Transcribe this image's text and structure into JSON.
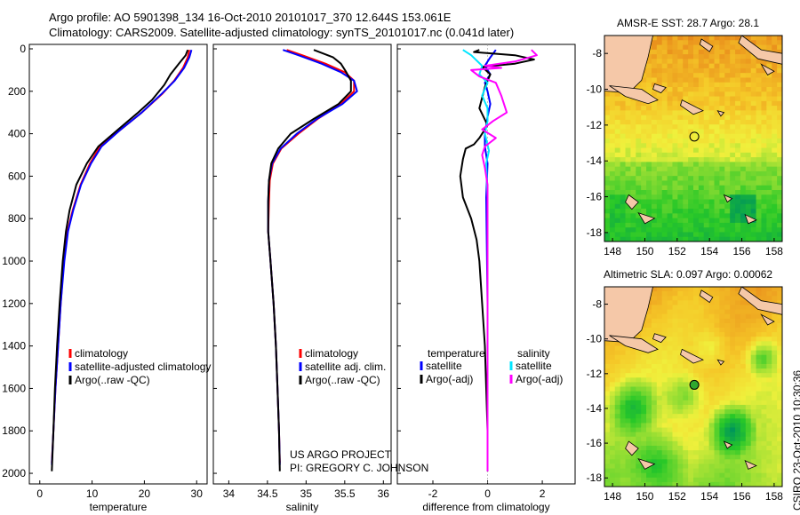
{
  "header": {
    "line1": "Argo profile: AO 5901398_134 16-Oct-2010 20101017_370 12.644S 153.061E",
    "line2": "Climatology: CARS2009. Satellite-adjusted climatology: synTS_20101017.nc (0.041d later)"
  },
  "footer": {
    "stamp": "CSIRO 23-Oct-2010 10:30:36"
  },
  "colors": {
    "red": "#ff0000",
    "blue": "#0000ff",
    "black": "#000000",
    "cyan": "#00e5ff",
    "magenta": "#ff00ff",
    "land": "#f5c8a8"
  },
  "y_ticks": [
    "0",
    "200",
    "400",
    "600",
    "800",
    "1000",
    "1200",
    "1400",
    "1600",
    "1800",
    "2000"
  ],
  "chart_data": [
    {
      "type": "line",
      "title": "",
      "xlabel": "temperature",
      "ylabel": "pressure",
      "xlim": [
        -2,
        32
      ],
      "ylim": [
        2050,
        0
      ],
      "xticks": [
        0,
        10,
        20,
        30
      ],
      "xtick_labels": [
        "0",
        "10",
        "20",
        "30"
      ],
      "legend": [
        "climatology",
        "satellite-adjusted climatology",
        "Argo(..raw -QC)"
      ],
      "series": [
        {
          "name": "climatology",
          "color": "red",
          "points": [
            [
              28.6,
              5
            ],
            [
              28.3,
              40
            ],
            [
              27.4,
              90
            ],
            [
              25.7,
              150
            ],
            [
              23.5,
              210
            ],
            [
              19.5,
              300
            ],
            [
              15.5,
              380
            ],
            [
              11.5,
              460
            ],
            [
              9.6,
              540
            ],
            [
              7.8,
              640
            ],
            [
              6.3,
              760
            ],
            [
              5.3,
              860
            ],
            [
              4.6,
              1000
            ],
            [
              4.0,
              1200
            ],
            [
              3.5,
              1400
            ],
            [
              3.0,
              1600
            ],
            [
              2.6,
              1800
            ],
            [
              2.3,
              1950
            ]
          ]
        },
        {
          "name": "satellite-adjusted climatology",
          "color": "blue",
          "points": [
            [
              29.0,
              5
            ],
            [
              28.6,
              40
            ],
            [
              27.6,
              90
            ],
            [
              25.8,
              150
            ],
            [
              23.4,
              210
            ],
            [
              19.5,
              300
            ],
            [
              15.5,
              380
            ],
            [
              11.8,
              460
            ],
            [
              9.8,
              540
            ],
            [
              7.9,
              640
            ],
            [
              6.4,
              760
            ],
            [
              5.4,
              860
            ],
            [
              4.7,
              1000
            ],
            [
              4.0,
              1200
            ],
            [
              3.5,
              1400
            ],
            [
              3.0,
              1600
            ],
            [
              2.6,
              1800
            ],
            [
              2.3,
              1960
            ]
          ]
        },
        {
          "name": "Argo(..raw -QC)",
          "color": "black",
          "points": [
            [
              28.3,
              5
            ],
            [
              27.9,
              30
            ],
            [
              26.6,
              70
            ],
            [
              25.0,
              120
            ],
            [
              23.8,
              170
            ],
            [
              21.5,
              240
            ],
            [
              18.8,
              300
            ],
            [
              15.0,
              380
            ],
            [
              11.2,
              460
            ],
            [
              9.0,
              540
            ],
            [
              7.0,
              640
            ],
            [
              5.7,
              760
            ],
            [
              5.0,
              860
            ],
            [
              4.4,
              1000
            ],
            [
              3.8,
              1200
            ],
            [
              3.3,
              1400
            ],
            [
              2.9,
              1600
            ],
            [
              2.6,
              1800
            ],
            [
              2.3,
              1990
            ]
          ]
        }
      ]
    },
    {
      "type": "line",
      "xlabel": "salinity",
      "xlim": [
        33.8,
        36.1
      ],
      "ylim": [
        2050,
        0
      ],
      "xticks": [
        34,
        34.5,
        35,
        35.5,
        36
      ],
      "xtick_labels": [
        "34",
        "34.5",
        "35",
        "35.5",
        "36"
      ],
      "legend": [
        "climatology",
        "satellite adj. clim.",
        "Argo(..raw -QC)"
      ],
      "annotation": [
        "US ARGO PROJECT",
        "PI: GREGORY C. JOHNSON"
      ],
      "series": [
        {
          "name": "climatology",
          "color": "red",
          "points": [
            [
              34.75,
              5
            ],
            [
              34.95,
              30
            ],
            [
              35.25,
              70
            ],
            [
              35.5,
              110
            ],
            [
              35.62,
              150
            ],
            [
              35.62,
              200
            ],
            [
              35.45,
              260
            ],
            [
              35.15,
              330
            ],
            [
              34.9,
              400
            ],
            [
              34.68,
              470
            ],
            [
              34.57,
              540
            ],
            [
              34.53,
              620
            ],
            [
              34.52,
              720
            ],
            [
              34.51,
              860
            ],
            [
              34.54,
              1000
            ],
            [
              34.58,
              1200
            ],
            [
              34.61,
              1400
            ],
            [
              34.63,
              1600
            ],
            [
              34.65,
              1800
            ],
            [
              34.66,
              1950
            ]
          ]
        },
        {
          "name": "satellite adj. clim.",
          "color": "blue",
          "points": [
            [
              34.7,
              5
            ],
            [
              34.9,
              30
            ],
            [
              35.2,
              70
            ],
            [
              35.45,
              110
            ],
            [
              35.62,
              150
            ],
            [
              35.66,
              200
            ],
            [
              35.47,
              260
            ],
            [
              35.14,
              330
            ],
            [
              34.88,
              400
            ],
            [
              34.67,
              470
            ],
            [
              34.56,
              540
            ],
            [
              34.52,
              620
            ],
            [
              34.51,
              720
            ],
            [
              34.51,
              860
            ],
            [
              34.54,
              1000
            ],
            [
              34.58,
              1200
            ],
            [
              34.61,
              1400
            ],
            [
              34.63,
              1600
            ],
            [
              34.65,
              1800
            ],
            [
              34.66,
              1960
            ]
          ]
        },
        {
          "name": "Argo(..raw -QC)",
          "color": "black",
          "points": [
            [
              35.1,
              5
            ],
            [
              35.35,
              40
            ],
            [
              35.45,
              70
            ],
            [
              35.52,
              110
            ],
            [
              35.58,
              150
            ],
            [
              35.58,
              200
            ],
            [
              35.42,
              260
            ],
            [
              35.1,
              330
            ],
            [
              34.8,
              400
            ],
            [
              34.64,
              470
            ],
            [
              34.55,
              540
            ],
            [
              34.52,
              620
            ],
            [
              34.51,
              720
            ],
            [
              34.51,
              860
            ],
            [
              34.54,
              1000
            ],
            [
              34.58,
              1200
            ],
            [
              34.61,
              1400
            ],
            [
              34.63,
              1600
            ],
            [
              34.65,
              1800
            ],
            [
              34.66,
              1990
            ]
          ]
        }
      ]
    },
    {
      "type": "line",
      "xlabel": "difference from climatology",
      "xlim": [
        -3.3,
        3.2
      ],
      "ylim": [
        2050,
        0
      ],
      "xticks": [
        -2,
        0,
        2
      ],
      "xtick_labels": [
        "-2",
        "0",
        "2"
      ],
      "legend_headers": [
        "temperature",
        "salinity"
      ],
      "legend": [
        "satellite",
        "Argo(-adj)",
        "satellite",
        "Argo(-adj)"
      ],
      "series": [
        {
          "name": "temperature satellite",
          "color": "blue",
          "points": [
            [
              0.3,
              5
            ],
            [
              0.1,
              40
            ],
            [
              -0.1,
              80
            ],
            [
              0.1,
              120
            ],
            [
              -0.1,
              160
            ],
            [
              0.0,
              200
            ],
            [
              0.1,
              260
            ],
            [
              0.0,
              320
            ],
            [
              -0.1,
              400
            ],
            [
              -0.1,
              460
            ],
            [
              0.0,
              540
            ],
            [
              -0.05,
              700
            ],
            [
              -0.03,
              900
            ],
            [
              0.0,
              1200
            ],
            [
              0.0,
              1600
            ],
            [
              0.0,
              1960
            ]
          ]
        },
        {
          "name": "temperature Argo(-adj)",
          "color": "black",
          "points": [
            [
              -0.3,
              5
            ],
            [
              -0.5,
              15
            ],
            [
              1.0,
              30
            ],
            [
              1.7,
              50
            ],
            [
              1.0,
              70
            ],
            [
              -0.2,
              85
            ],
            [
              0.1,
              120
            ],
            [
              -0.1,
              180
            ],
            [
              -0.3,
              280
            ],
            [
              0.0,
              360
            ],
            [
              -0.3,
              420
            ],
            [
              -0.5,
              450
            ],
            [
              -0.8,
              470
            ],
            [
              -0.9,
              520
            ],
            [
              -1.0,
              600
            ],
            [
              -0.9,
              700
            ],
            [
              -0.6,
              800
            ],
            [
              -0.4,
              900
            ],
            [
              -0.3,
              1000
            ],
            [
              -0.2,
              1200
            ],
            [
              -0.1,
              1400
            ],
            [
              -0.05,
              1600
            ],
            [
              0.0,
              1800
            ],
            [
              0.0,
              1990
            ]
          ]
        },
        {
          "name": "salinity satellite",
          "color": "cyan",
          "points": [
            [
              -0.9,
              5
            ],
            [
              -0.6,
              30
            ],
            [
              -0.2,
              80
            ],
            [
              -0.3,
              120
            ],
            [
              0.0,
              160
            ],
            [
              -0.2,
              220
            ],
            [
              0.0,
              280
            ],
            [
              0.0,
              340
            ],
            [
              -0.1,
              400
            ],
            [
              0.05,
              480
            ],
            [
              -0.05,
              540
            ],
            [
              0.0,
              700
            ],
            [
              0.0,
              900
            ],
            [
              0.0,
              1200
            ],
            [
              0.0,
              1600
            ],
            [
              0.0,
              1960
            ]
          ]
        },
        {
          "name": "salinity Argo(-adj)",
          "color": "magenta",
          "points": [
            [
              1.6,
              5
            ],
            [
              1.8,
              30
            ],
            [
              1.0,
              60
            ],
            [
              -0.1,
              80
            ],
            [
              0.5,
              90
            ],
            [
              -0.6,
              100
            ],
            [
              -0.3,
              130
            ],
            [
              0.3,
              160
            ],
            [
              0.5,
              220
            ],
            [
              0.7,
              300
            ],
            [
              0.2,
              340
            ],
            [
              -0.2,
              380
            ],
            [
              0.3,
              420
            ],
            [
              -0.1,
              460
            ],
            [
              -0.2,
              500
            ],
            [
              -0.1,
              560
            ],
            [
              0.0,
              640
            ],
            [
              0.0,
              760
            ],
            [
              0.0,
              900
            ],
            [
              0.0,
              1200
            ],
            [
              0.0,
              1600
            ],
            [
              0.0,
              1990
            ]
          ]
        }
      ]
    },
    {
      "type": "heatmap",
      "title": "AMSR-E SST: 28.7 Argo: 28.1",
      "xlim": [
        147.5,
        158.5
      ],
      "ylim": [
        -18.5,
        -7
      ],
      "xticks": [
        148,
        150,
        152,
        154,
        156,
        158
      ],
      "xtick_labels": [
        "148",
        "150",
        "152",
        "154",
        "156",
        "158"
      ],
      "yticks": [
        -8,
        -10,
        -12,
        -14,
        -16,
        -18
      ],
      "ytick_labels": [
        "-8",
        "-10",
        "-12",
        "-14",
        "-16",
        "-18"
      ],
      "float_marker": {
        "lon": 153.061,
        "lat": -12.644,
        "filled": false
      },
      "field_description": "warm orange north, yellow centre, green south"
    },
    {
      "type": "heatmap",
      "title": "Altimetric SLA: 0.097 Argo: 0.00062",
      "xlim": [
        147.5,
        158.5
      ],
      "ylim": [
        -18.5,
        -7
      ],
      "xticks": [
        148,
        150,
        152,
        154,
        156,
        158
      ],
      "xtick_labels": [
        "148",
        "150",
        "152",
        "154",
        "156",
        "158"
      ],
      "yticks": [
        -8,
        -10,
        -12,
        -14,
        -16,
        -18
      ],
      "ytick_labels": [
        "-8",
        "-10",
        "-12",
        "-14",
        "-16",
        "-18"
      ],
      "float_marker": {
        "lon": 153.061,
        "lat": -12.644,
        "filled": true
      },
      "field_description": "yellow-orange north, green blobs south"
    }
  ]
}
